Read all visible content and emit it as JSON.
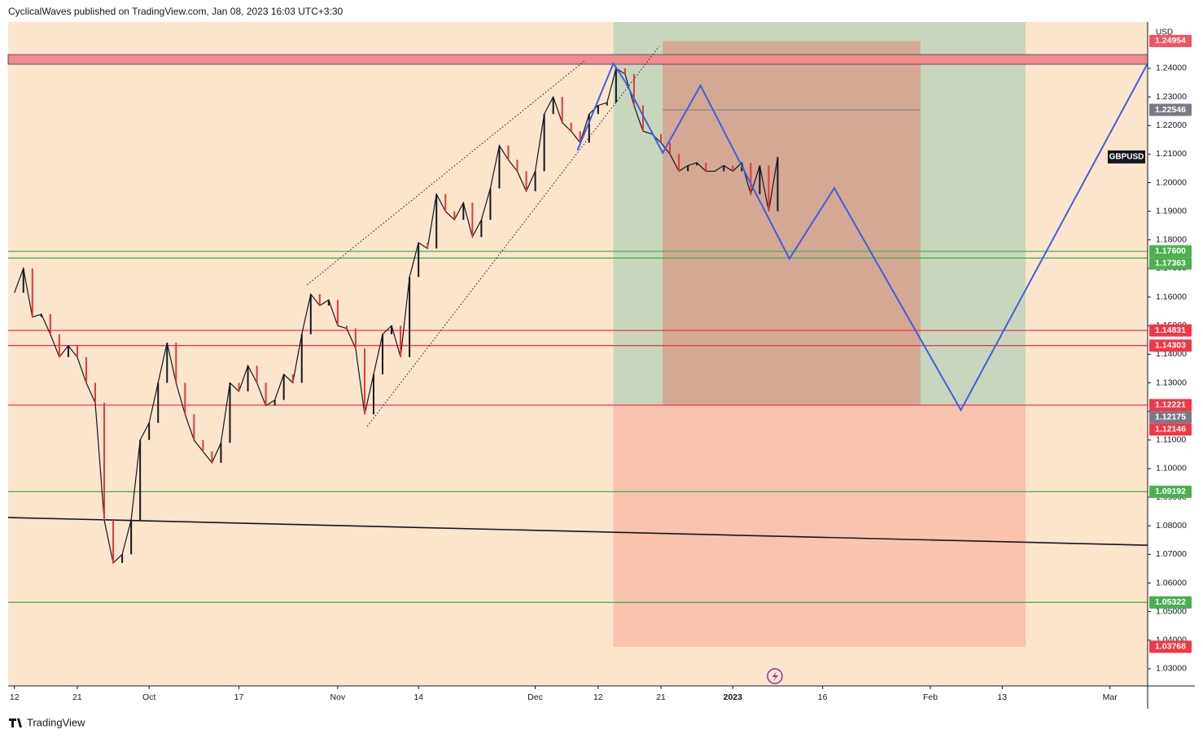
{
  "header": {
    "text": "CyclicalWaves published on TradingView.com, Jan 08, 2023 16:03 UTC+3:30"
  },
  "footer": {
    "brand": "TradingView"
  },
  "chart_data": {
    "type": "line",
    "currency": "USD",
    "xlim": [
      -0.7,
      126.2
    ],
    "ylim": [
      1.024,
      1.2562
    ],
    "xticks": [
      {
        "value": 0,
        "label": "12"
      },
      {
        "value": 7,
        "label": "21"
      },
      {
        "value": 15,
        "label": "Oct"
      },
      {
        "value": 25,
        "label": "17"
      },
      {
        "value": 36,
        "label": "Nov"
      },
      {
        "value": 45,
        "label": "14"
      },
      {
        "value": 58,
        "label": "Dec"
      },
      {
        "value": 65,
        "label": "12"
      },
      {
        "value": 72,
        "label": "21"
      },
      {
        "value": 80,
        "label": "2023"
      },
      {
        "value": 90,
        "label": "16"
      },
      {
        "value": 102,
        "label": "Feb"
      },
      {
        "value": 110,
        "label": "13"
      },
      {
        "value": 122,
        "label": "Mar"
      }
    ],
    "yticks": [
      {
        "value": 1.03,
        "label": "1.03000"
      },
      {
        "value": 1.04,
        "label": "1.04000"
      },
      {
        "value": 1.05,
        "label": "1.05000"
      },
      {
        "value": 1.06,
        "label": "1.06000"
      },
      {
        "value": 1.07,
        "label": "1.07000"
      },
      {
        "value": 1.08,
        "label": "1.08000"
      },
      {
        "value": 1.09,
        "label": "1.09000"
      },
      {
        "value": 1.1,
        "label": "1.10000"
      },
      {
        "value": 1.11,
        "label": "1.11000"
      },
      {
        "value": 1.12,
        "label": "1.12000"
      },
      {
        "value": 1.13,
        "label": "1.13000"
      },
      {
        "value": 1.14,
        "label": "1.14000"
      },
      {
        "value": 1.15,
        "label": "1.15000"
      },
      {
        "value": 1.16,
        "label": "1.16000"
      },
      {
        "value": 1.17,
        "label": "1.17000"
      },
      {
        "value": 1.18,
        "label": "1.18000"
      },
      {
        "value": 1.19,
        "label": "1.19000"
      },
      {
        "value": 1.2,
        "label": "1.20000"
      },
      {
        "value": 1.21,
        "label": "1.21000"
      },
      {
        "value": 1.22,
        "label": "1.22000"
      },
      {
        "value": 1.23,
        "label": "1.23000"
      },
      {
        "value": 1.24,
        "label": "1.24000"
      }
    ],
    "series": [
      {
        "name": "GBPUSD",
        "color": "#131722",
        "x": [
          0,
          1,
          2,
          3,
          4,
          5,
          6,
          7,
          8,
          9,
          10,
          11,
          12,
          13,
          14,
          15,
          16,
          17,
          18,
          19,
          20,
          21,
          22,
          23,
          24,
          25,
          26,
          27,
          28,
          29,
          30,
          31,
          32,
          33,
          34,
          35,
          36,
          37,
          38,
          39,
          40,
          41,
          42,
          43,
          44,
          45,
          46,
          47,
          48,
          49,
          50,
          51,
          52,
          53,
          54,
          55,
          56,
          57,
          58,
          59,
          60,
          61,
          62,
          63,
          64,
          65,
          66,
          67,
          68,
          69,
          70,
          71,
          72,
          73,
          74,
          75,
          76,
          77,
          78,
          79,
          80,
          81,
          82,
          83,
          84,
          85
        ],
        "values": [
          1.1615,
          1.17,
          1.153,
          1.154,
          1.147,
          1.139,
          1.143,
          1.139,
          1.13,
          1.123,
          1.082,
          1.067,
          1.07,
          1.082,
          1.11,
          1.116,
          1.13,
          1.144,
          1.13,
          1.119,
          1.11,
          1.106,
          1.102,
          1.109,
          1.13,
          1.127,
          1.136,
          1.13,
          1.122,
          1.124,
          1.133,
          1.13,
          1.147,
          1.161,
          1.157,
          1.159,
          1.15,
          1.149,
          1.142,
          1.119,
          1.133,
          1.147,
          1.15,
          1.139,
          1.167,
          1.179,
          1.177,
          1.196,
          1.19,
          1.187,
          1.193,
          1.181,
          1.187,
          1.198,
          1.213,
          1.208,
          1.204,
          1.197,
          1.204,
          1.224,
          1.23,
          1.221,
          1.218,
          1.214,
          1.224,
          1.227,
          1.228,
          1.24,
          1.238,
          1.227,
          1.218,
          1.217,
          1.214,
          1.21,
          1.204,
          1.206,
          1.207,
          1.204,
          1.204,
          1.206,
          1.204,
          1.207,
          1.196,
          1.206,
          1.19,
          1.209
        ]
      }
    ],
    "zones": [
      {
        "x": [
          66.7,
          112.6
        ],
        "y": [
          1.12221,
          1.2562
        ],
        "color": "#c9d6be"
      },
      {
        "x": [
          66.7,
          112.6
        ],
        "y": [
          1.03768,
          1.12221
        ],
        "color": "#f9c3ad"
      },
      {
        "x": [
          72.2,
          100.9
        ],
        "y": [
          1.12221,
          1.24954
        ],
        "color": "#d3a995"
      },
      {
        "x": [
          -0.7,
          126.2
        ],
        "y": [
          1.2414,
          1.2448
        ],
        "color": "#f28b8b"
      }
    ],
    "projection": {
      "color": "#3f5fe0",
      "x": [
        62.7,
        66.7,
        68.0,
        72.2,
        76.4,
        86.3,
        91.3,
        105.4,
        126.2
      ],
      "values": [
        1.2113,
        1.2417,
        1.2354,
        1.2104,
        1.234,
        1.1734,
        1.1981,
        1.1205,
        1.2417
      ]
    },
    "trendline": {
      "color": "#131722",
      "x": [
        -0.7,
        126.2
      ],
      "values": [
        1.0829,
        1.0732
      ]
    },
    "channel": [
      {
        "x": [
          32.6,
          63.5
        ],
        "values": [
          1.1643,
          1.2426
        ]
      },
      {
        "x": [
          39.3,
          71.8
        ],
        "values": [
          1.1148,
          1.2477
        ]
      }
    ],
    "levels": [
      {
        "value": 1.24954,
        "label": "1.24954",
        "color": "#f7525f",
        "line": false
      },
      {
        "value": 1.22546,
        "label": "1.22546",
        "color": "#787b86",
        "line": false
      },
      {
        "value": 1.176,
        "label": "1.17600",
        "color": "#4caf50",
        "line": true
      },
      {
        "value": 1.17363,
        "label": "1.17363",
        "color": "#4caf50",
        "line": true
      },
      {
        "value": 1.14831,
        "label": "1.14831",
        "color": "#f23645",
        "line": true
      },
      {
        "value": 1.14303,
        "label": "1.14303",
        "color": "#f23645",
        "line": true
      },
      {
        "value": 1.12221,
        "label": "1.12221",
        "color": "#f23645",
        "line": true
      },
      {
        "value": 1.12175,
        "label": "1.12175",
        "color": "#787b86",
        "line": false
      },
      {
        "value": 1.12146,
        "label": "1.12146",
        "color": "#f23645",
        "line": false
      },
      {
        "value": 1.09192,
        "label": "1.09192",
        "color": "#4caf50",
        "line": true
      },
      {
        "value": 1.05322,
        "label": "1.05322",
        "color": "#4caf50",
        "line": true
      },
      {
        "value": 1.03768,
        "label": "1.03768",
        "color": "#f23645",
        "line": false
      }
    ]
  }
}
